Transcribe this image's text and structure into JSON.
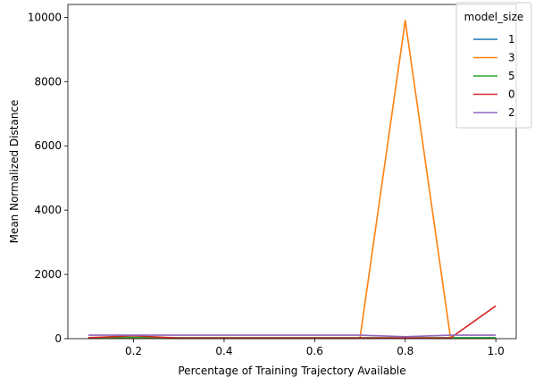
{
  "chart_data": {
    "type": "line",
    "title": "",
    "xlabel": "Percentage of Training Trajectory Available",
    "ylabel": "Mean Normalized Distance",
    "xlim": [
      0.055,
      1.045
    ],
    "ylim": [
      0,
      10400
    ],
    "xticks": [
      0.2,
      0.4,
      0.6,
      0.8,
      1.0
    ],
    "xtick_labels": [
      "0.2",
      "0.4",
      "0.6",
      "0.8",
      "1.0"
    ],
    "yticks": [
      0,
      2000,
      4000,
      6000,
      8000,
      10000
    ],
    "ytick_labels": [
      "0",
      "2000",
      "4000",
      "6000",
      "8000",
      "10000"
    ],
    "grid": false,
    "legend": {
      "title": "model_size",
      "placement": "top-right"
    },
    "x": [
      0.1,
      0.2,
      0.3,
      0.4,
      0.5,
      0.6,
      0.7,
      0.8,
      0.9,
      1.0
    ],
    "series": [
      {
        "name": "1",
        "color": "#1f77b4",
        "values": [
          20,
          20,
          20,
          20,
          20,
          20,
          20,
          20,
          20,
          20
        ]
      },
      {
        "name": "3",
        "color": "#ff7f0e",
        "values": [
          15,
          15,
          15,
          15,
          15,
          15,
          15,
          9900,
          15,
          15
        ]
      },
      {
        "name": "5",
        "color": "#2ca02c",
        "values": [
          30,
          40,
          30,
          30,
          30,
          30,
          30,
          30,
          30,
          30
        ]
      },
      {
        "name": "0",
        "color": "#d62728",
        "values": [
          30,
          90,
          20,
          20,
          20,
          20,
          20,
          20,
          20,
          1020
        ]
      },
      {
        "name": "2",
        "color": "#9467bd",
        "values": [
          110,
          110,
          110,
          110,
          110,
          110,
          110,
          60,
          110,
          110
        ]
      }
    ]
  }
}
